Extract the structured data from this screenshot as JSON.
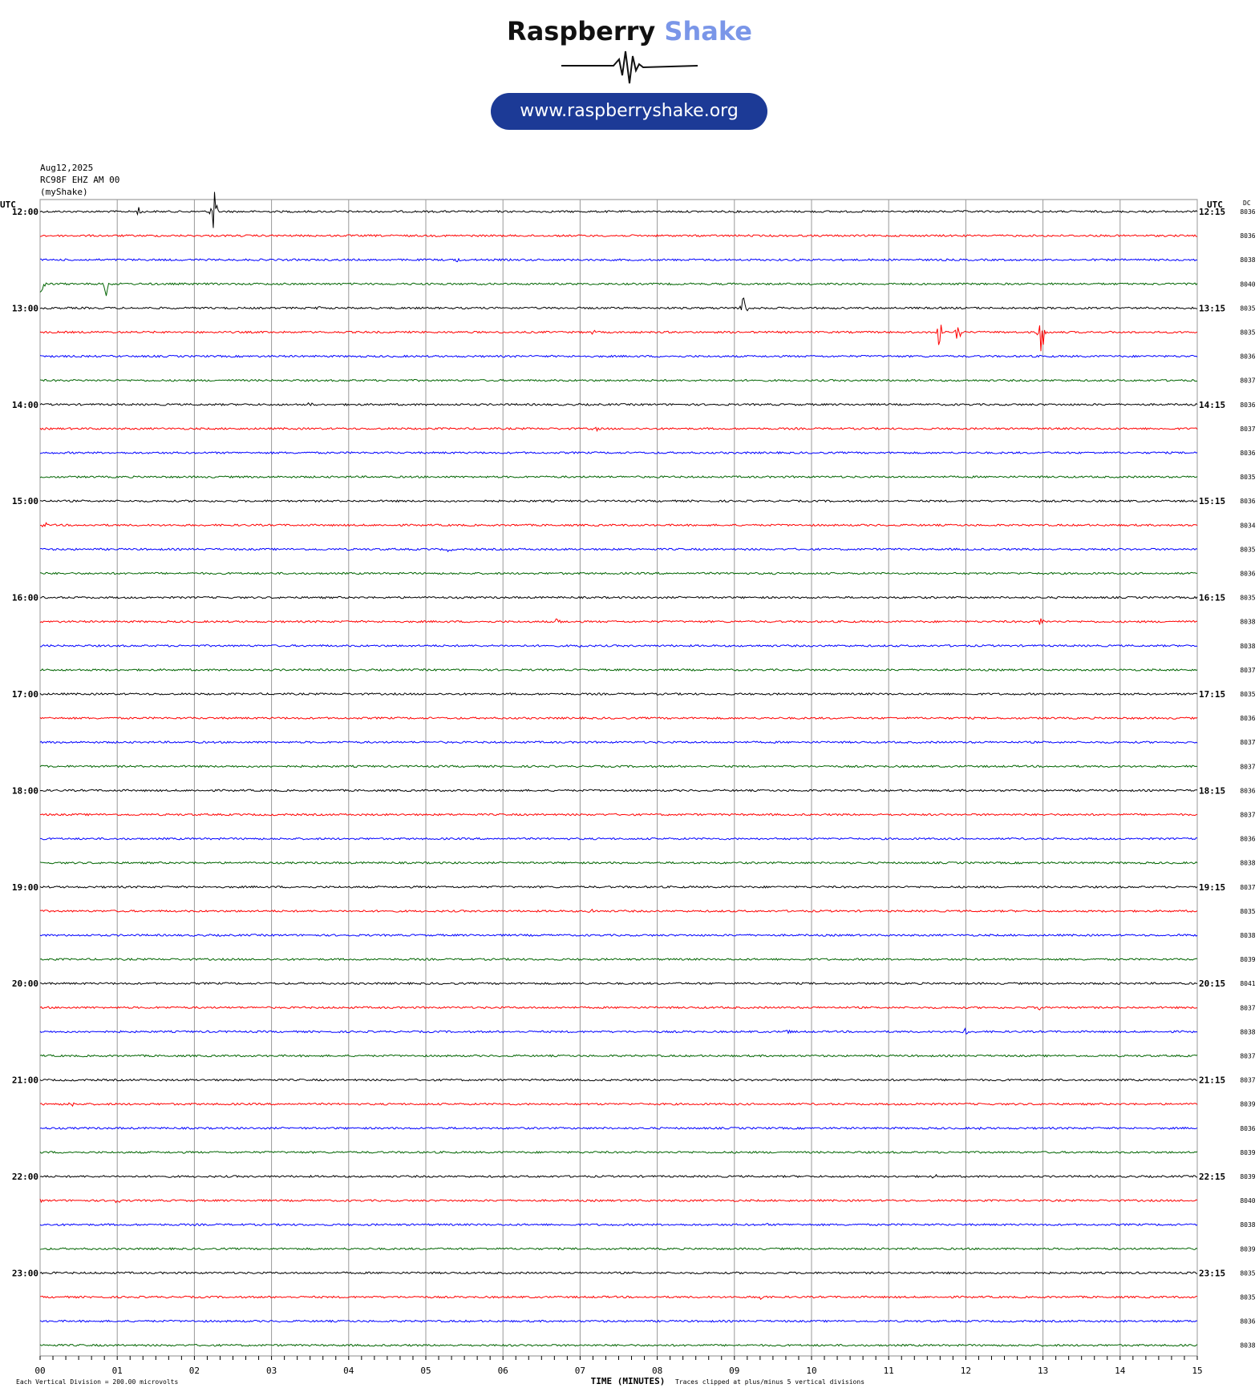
{
  "header": {
    "brand_part1": "Raspberry",
    "brand_part2": "Shake",
    "url": "www.raspberryshake.org",
    "brand_color": "#7a96e8",
    "pill_color": "#1c3a96"
  },
  "meta": {
    "date": "Aug12,2025",
    "station": "RC98F EHZ AM 00",
    "network": "(myShake)"
  },
  "chart_data": {
    "type": "line",
    "title": "",
    "left_axis_title": "UTC",
    "right_axis_title": "UTC",
    "dc_title": "DC",
    "xlabel": "TIME (MINUTES)",
    "xlim": [
      0,
      15
    ],
    "x_ticks": [
      "00",
      "01",
      "02",
      "03",
      "04",
      "05",
      "06",
      "07",
      "08",
      "09",
      "10",
      "11",
      "12",
      "13",
      "14",
      "15"
    ],
    "grid": true,
    "footer_left": "Each Vertical Division =  200.00 microvolts",
    "footer_right": "Traces clipped at plus/minus 5 vertical divisions",
    "colors": [
      "#000000",
      "#ff0000",
      "#0000ff",
      "#006400"
    ],
    "left_labels": [
      "12:00",
      "13:00",
      "14:00",
      "15:00",
      "16:00",
      "17:00",
      "18:00",
      "19:00",
      "20:00",
      "21:00",
      "22:00",
      "23:00"
    ],
    "right_labels": [
      "12:15",
      "13:15",
      "14:15",
      "15:15",
      "16:15",
      "17:15",
      "18:15",
      "19:15",
      "20:15",
      "21:15",
      "22:15",
      "23:15"
    ],
    "dc_values": [
      "8036",
      "8036",
      "8038",
      "8040",
      "8035",
      "8035",
      "8036",
      "8037",
      "8036",
      "8037",
      "8036",
      "8035",
      "8036",
      "8034",
      "8035",
      "8036",
      "8035",
      "8038",
      "8038",
      "8037",
      "8035",
      "8036",
      "8037",
      "8037",
      "8036",
      "8037",
      "8036",
      "8038",
      "8037",
      "8035",
      "8038",
      "8039",
      "8041",
      "8037",
      "8038",
      "8037",
      "8037",
      "8039",
      "8036",
      "8039",
      "8039",
      "8040",
      "8038",
      "8039",
      "8035",
      "8035",
      "8036",
      "8038"
    ],
    "events": [
      {
        "trace": 0,
        "minute": 2.25,
        "amplitude": 5
      },
      {
        "trace": 0,
        "minute": 1.28,
        "amplitude": 1
      },
      {
        "trace": 2,
        "minute": 5.42,
        "amplitude": 0.6
      },
      {
        "trace": 3,
        "minute": 0.02,
        "amplitude": 5
      },
      {
        "trace": 3,
        "minute": 0.85,
        "amplitude": 3
      },
      {
        "trace": 4,
        "minute": 9.13,
        "amplitude": 4
      },
      {
        "trace": 4,
        "minute": 3.6,
        "amplitude": 0.5
      },
      {
        "trace": 5,
        "minute": 11.65,
        "amplitude": 3
      },
      {
        "trace": 5,
        "minute": 11.9,
        "amplitude": 3
      },
      {
        "trace": 5,
        "minute": 12.98,
        "amplitude": 5
      },
      {
        "trace": 5,
        "minute": 7.15,
        "amplitude": 0.5
      },
      {
        "trace": 6,
        "minute": 6.35,
        "amplitude": 0.5
      },
      {
        "trace": 8,
        "minute": 3.5,
        "amplitude": 0.6
      },
      {
        "trace": 9,
        "minute": 7.2,
        "amplitude": 0.5
      },
      {
        "trace": 13,
        "minute": 0.05,
        "amplitude": 0.6
      },
      {
        "trace": 14,
        "minute": 5.3,
        "amplitude": 0.4
      },
      {
        "trace": 17,
        "minute": 6.72,
        "amplitude": 1
      },
      {
        "trace": 17,
        "minute": 12.98,
        "amplitude": 1.2
      },
      {
        "trace": 18,
        "minute": 7.0,
        "amplitude": 0.4
      },
      {
        "trace": 29,
        "minute": 7.15,
        "amplitude": 0.6
      },
      {
        "trace": 30,
        "minute": 14.8,
        "amplitude": 0.6
      },
      {
        "trace": 33,
        "minute": 12.98,
        "amplitude": 1
      },
      {
        "trace": 34,
        "minute": 9.7,
        "amplitude": 0.6
      },
      {
        "trace": 34,
        "minute": 12.0,
        "amplitude": 0.8
      },
      {
        "trace": 37,
        "minute": 0.4,
        "amplitude": 0.6
      },
      {
        "trace": 37,
        "minute": 11.4,
        "amplitude": 0.6
      },
      {
        "trace": 38,
        "minute": 12.2,
        "amplitude": 0.5
      },
      {
        "trace": 40,
        "minute": 11.6,
        "amplitude": 0.5
      },
      {
        "trace": 41,
        "minute": 0.0,
        "amplitude": 0.5
      },
      {
        "trace": 41,
        "minute": 1.0,
        "amplitude": 0.6
      },
      {
        "trace": 42,
        "minute": 9.4,
        "amplitude": 0.4
      },
      {
        "trace": 45,
        "minute": 9.35,
        "amplitude": 0.5
      }
    ]
  }
}
